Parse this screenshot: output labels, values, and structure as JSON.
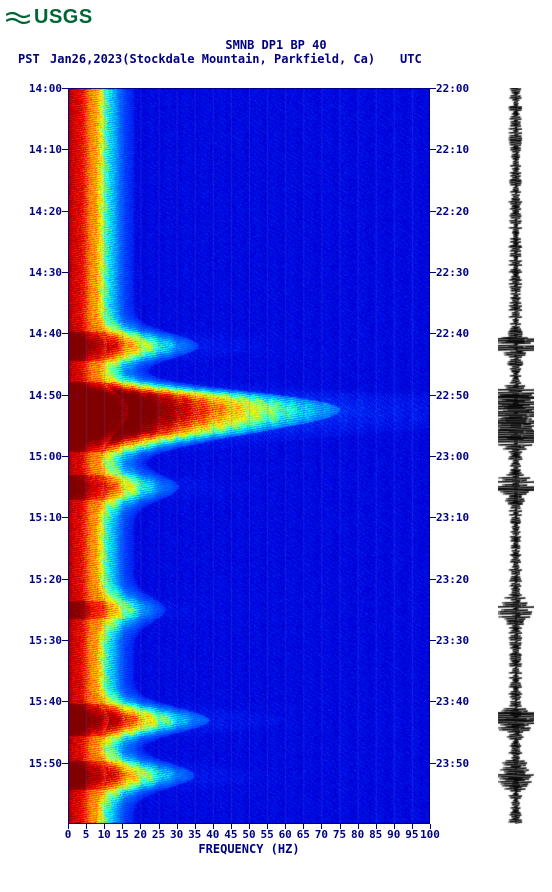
{
  "logo_text": "USGS",
  "title": "SMNB DP1 BP 40",
  "date_line": "Jan26,2023(Stockdale Mountain, Parkfield, Ca)",
  "tz_left": "PST",
  "tz_right": "UTC",
  "x_label": "FREQUENCY (HZ)",
  "spectrogram": {
    "type": "heatmap",
    "x_range": [
      0,
      100
    ],
    "y_range_minutes": [
      0,
      120
    ],
    "background_color": "#ffffff",
    "grid_color": "#6060ff",
    "text_color": "#000080",
    "x_ticks": [
      0,
      5,
      10,
      15,
      20,
      25,
      30,
      35,
      40,
      45,
      50,
      55,
      60,
      65,
      70,
      75,
      80,
      85,
      90,
      95,
      100
    ],
    "left_time_labels": [
      "14:00",
      "14:10",
      "14:20",
      "14:30",
      "14:40",
      "14:50",
      "15:00",
      "15:10",
      "15:20",
      "15:30",
      "15:40",
      "15:50"
    ],
    "right_time_labels": [
      "22:00",
      "22:10",
      "22:20",
      "22:30",
      "22:40",
      "22:50",
      "23:00",
      "23:10",
      "23:20",
      "23:30",
      "23:40",
      "23:50"
    ],
    "tick_minutes": [
      0,
      10,
      20,
      30,
      40,
      50,
      60,
      70,
      80,
      90,
      100,
      110
    ],
    "colormap": [
      [
        0.0,
        "#800000"
      ],
      [
        0.05,
        "#c00000"
      ],
      [
        0.1,
        "#ff0000"
      ],
      [
        0.15,
        "#ff6000"
      ],
      [
        0.2,
        "#ffb000"
      ],
      [
        0.25,
        "#ffff00"
      ],
      [
        0.3,
        "#c0ff40"
      ],
      [
        0.35,
        "#60ff90"
      ],
      [
        0.4,
        "#00ffff"
      ],
      [
        0.5,
        "#0080ff"
      ],
      [
        0.65,
        "#0040ff"
      ],
      [
        0.85,
        "#0000e0"
      ],
      [
        1.0,
        "#0000c0"
      ]
    ],
    "low_freq_intensity_profile": {
      "base_hot_width_hz": 8,
      "transition_width_hz": 18,
      "events": [
        {
          "minute": 42,
          "strength": 0.6,
          "width_hz": 30
        },
        {
          "minute": 51,
          "strength": 1.0,
          "width_hz": 40
        },
        {
          "minute": 54,
          "strength": 0.9,
          "width_hz": 38
        },
        {
          "minute": 57,
          "strength": 0.5,
          "width_hz": 28
        },
        {
          "minute": 65,
          "strength": 0.5,
          "width_hz": 25
        },
        {
          "minute": 85,
          "strength": 0.4,
          "width_hz": 22
        },
        {
          "minute": 103,
          "strength": 0.7,
          "width_hz": 30
        },
        {
          "minute": 112,
          "strength": 0.6,
          "width_hz": 28
        }
      ]
    }
  },
  "waveform": {
    "color": "#000000",
    "base_amplitude": 0.15,
    "events": [
      {
        "minute": 42,
        "amp": 0.7
      },
      {
        "minute": 51,
        "amp": 1.0
      },
      {
        "minute": 54,
        "amp": 0.95
      },
      {
        "minute": 57,
        "amp": 0.5
      },
      {
        "minute": 65,
        "amp": 0.45
      },
      {
        "minute": 85,
        "amp": 0.35
      },
      {
        "minute": 103,
        "amp": 0.65
      },
      {
        "minute": 112,
        "amp": 0.55
      }
    ]
  }
}
